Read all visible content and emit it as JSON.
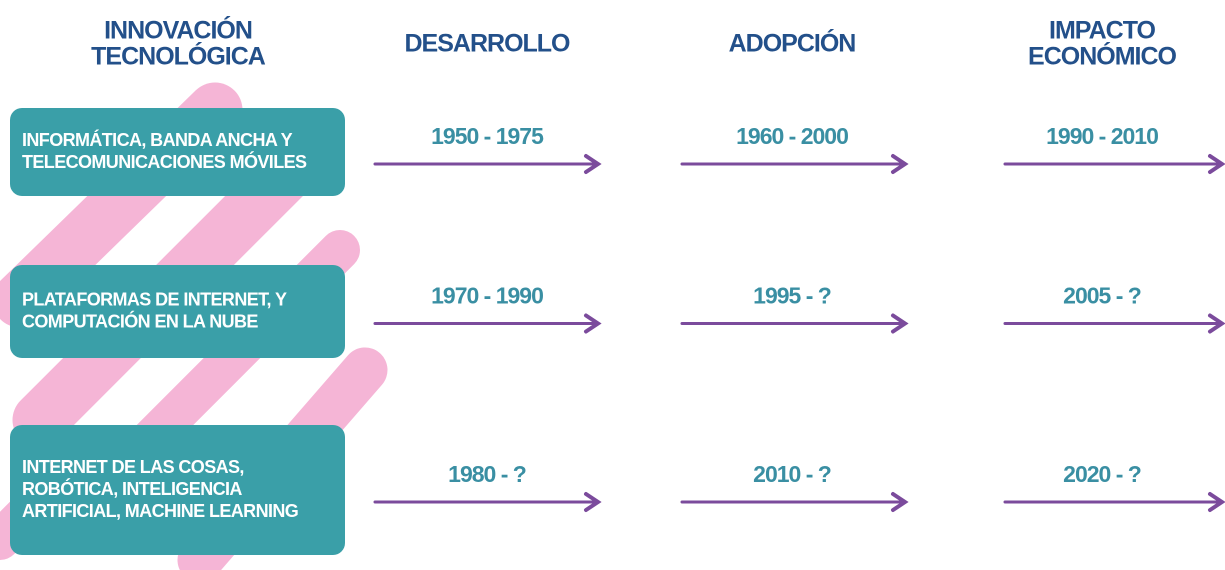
{
  "headers": [
    [
      "INNOVACIÓN",
      "TECNOLÓGICA"
    ],
    [
      "DESARROLLO"
    ],
    [
      "ADOPCIÓN"
    ],
    [
      "IMPACTO",
      "ECONÓMICO"
    ]
  ],
  "rows": [
    {
      "label": [
        "INFORMÁTICA, BANDA ANCHA Y",
        "TELECOMUNICACIONES MÓVILES"
      ],
      "periods": [
        "1950 - 1975",
        "1960 - 2000",
        "1990 - 2010"
      ]
    },
    {
      "label": [
        "PLATAFORMAS DE INTERNET, Y",
        "COMPUTACIÓN EN LA NUBE"
      ],
      "periods": [
        "1970 - 1990",
        "1995 - ?",
        "2005 - ?"
      ]
    },
    {
      "label": [
        "INTERNET DE LAS COSAS,",
        "ROBÓTICA, INTELIGENCIA",
        "ARTIFICIAL, MACHINE LEARNING"
      ],
      "periods": [
        "1980 - ?",
        "2010 - ?",
        "2020 - ?"
      ]
    }
  ]
}
